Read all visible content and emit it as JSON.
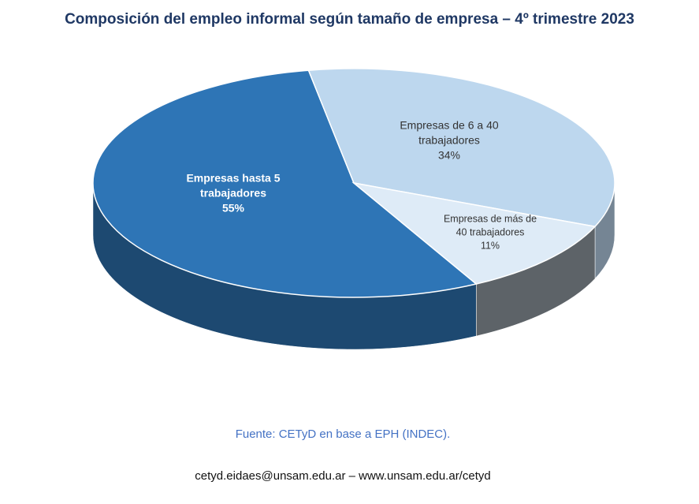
{
  "chart_data": {
    "type": "pie",
    "title": "Composición del empleo informal según tamaño de empresa – 4º trimestre 2023",
    "categories": [
      "Empresas hasta 5 trabajadores",
      "Empresas de 6 a 40 trabajadores",
      "Empresas de más de 40 trabajadores"
    ],
    "values": [
      55,
      34,
      11
    ],
    "value_labels": [
      "55%",
      "34%",
      "11%"
    ],
    "colors": [
      "#2e75b6",
      "#bdd7ee",
      "#deebf7"
    ],
    "source": "Fuente: CETyD en base a EPH (INDEC).",
    "footer": "cetyd.eidaes@unsam.edu.ar – www.unsam.edu.ar/cetyd"
  }
}
